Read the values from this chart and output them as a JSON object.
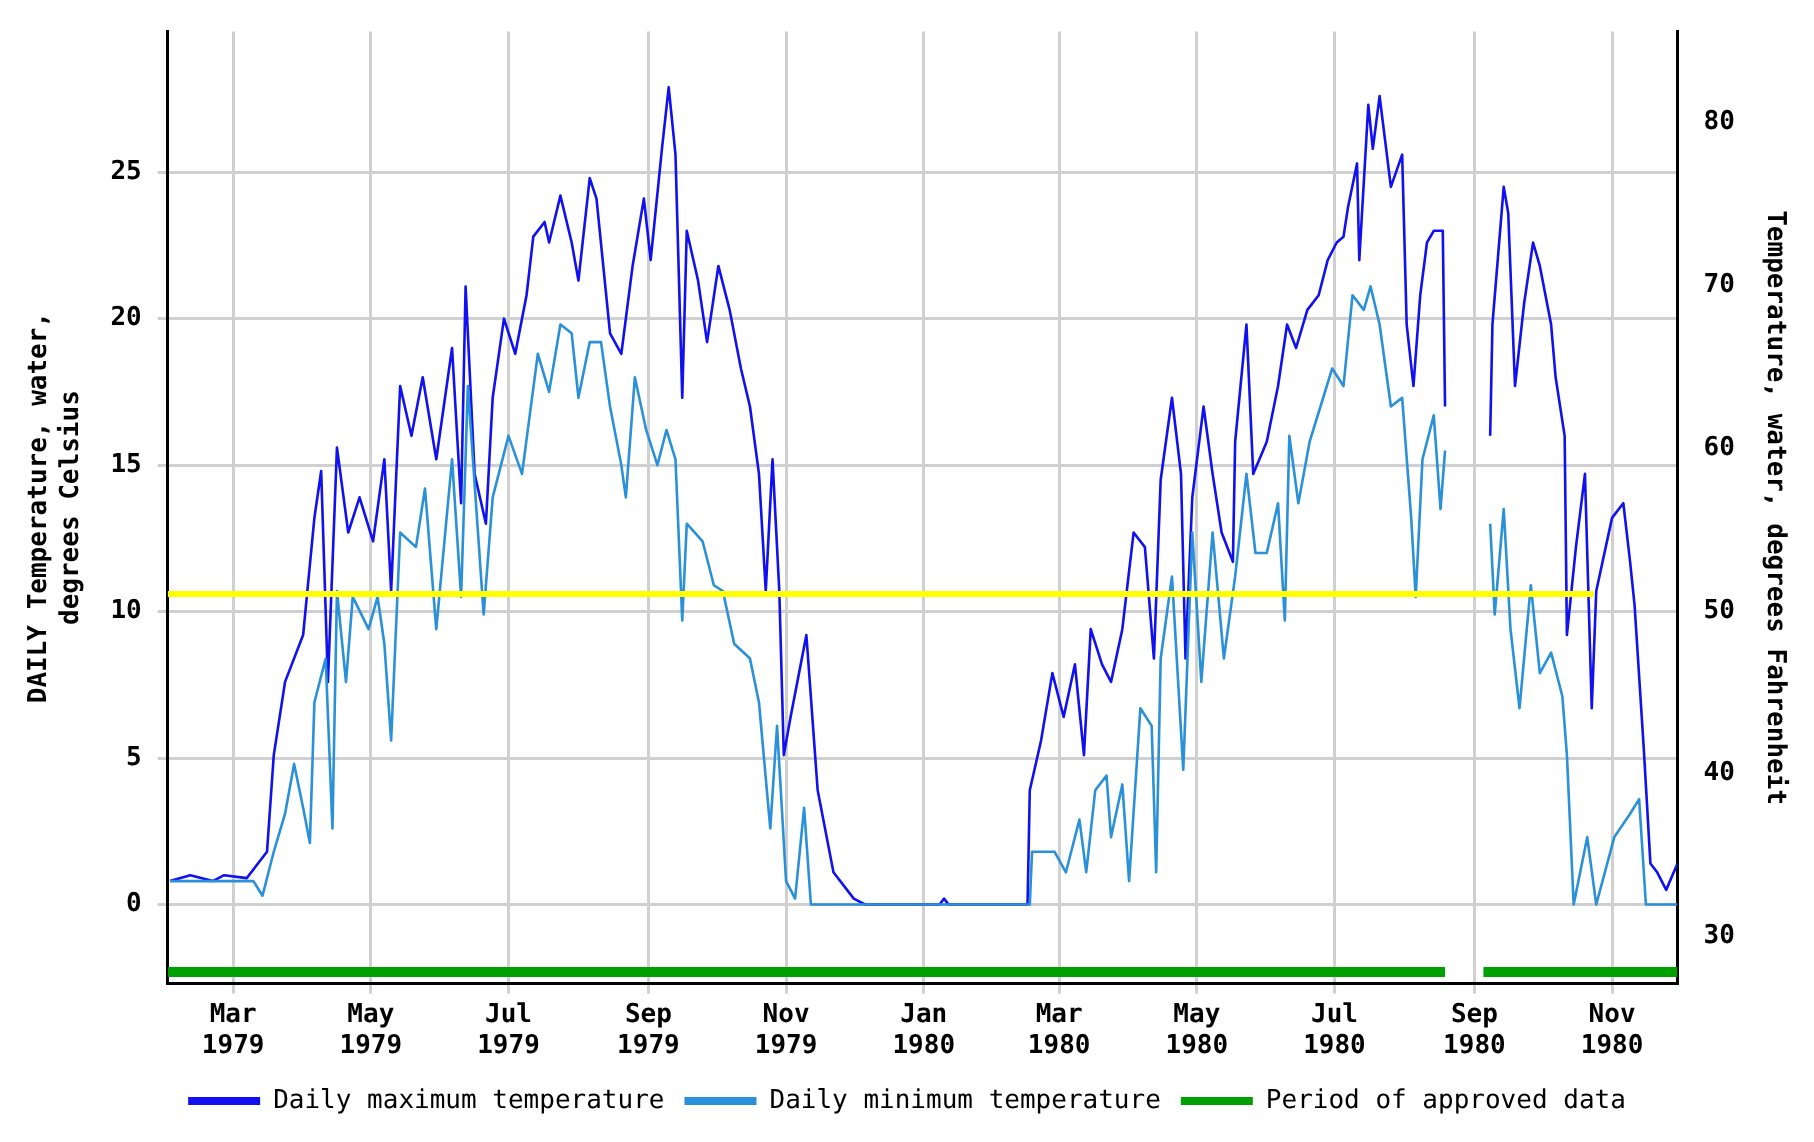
{
  "chart_data": {
    "type": "line",
    "xlabel": null,
    "ylabel": "DAILY Temperature, water, degrees Celsius",
    "y2label": "Temperature, water, degrees Fahrenheit",
    "xlim": [
      "1979-01-31",
      "1980-11-30"
    ],
    "xticks": [
      {
        "value": "1979-03-01",
        "label": "Mar 1979"
      },
      {
        "value": "1979-05-01",
        "label": "May 1979"
      },
      {
        "value": "1979-07-01",
        "label": "Jul 1979"
      },
      {
        "value": "1979-09-01",
        "label": "Sep 1979"
      },
      {
        "value": "1979-11-01",
        "label": "Nov 1979"
      },
      {
        "value": "1980-01-01",
        "label": "Jan 1980"
      },
      {
        "value": "1980-03-01",
        "label": "Mar 1980"
      },
      {
        "value": "1980-05-01",
        "label": "May 1980"
      },
      {
        "value": "1980-07-01",
        "label": "Jul 1980"
      },
      {
        "value": "1980-09-01",
        "label": "Sep 1980"
      },
      {
        "value": "1980-11-01",
        "label": "Nov 1980"
      }
    ],
    "ylim": [
      -2.7,
      29.8
    ],
    "yticks": [
      0,
      5,
      10,
      15,
      20,
      25
    ],
    "y2lim": [
      27.1,
      85.6
    ],
    "y2ticks": [
      30,
      40,
      50,
      60,
      70,
      80
    ],
    "grid": true,
    "legend": "bottom",
    "marker": "none",
    "line_style": "solid",
    "series": [
      {
        "name": "Daily maximum temperature",
        "color": "#1010f0",
        "x": [
          "1979-02-01",
          "1979-02-10",
          "1979-02-20",
          "1979-02-25",
          "1979-03-07",
          "1979-03-16",
          "1979-03-19",
          "1979-03-24",
          "1979-04-01",
          "1979-04-06",
          "1979-04-09",
          "1979-04-12",
          "1979-04-16",
          "1979-04-21",
          "1979-04-26",
          "1979-05-02",
          "1979-05-07",
          "1979-05-10",
          "1979-05-14",
          "1979-05-19",
          "1979-05-24",
          "1979-05-30",
          "1979-06-06",
          "1979-06-10",
          "1979-06-12",
          "1979-06-16",
          "1979-06-21",
          "1979-06-24",
          "1979-06-29",
          "1979-07-04",
          "1979-07-09",
          "1979-07-12",
          "1979-07-17",
          "1979-07-19",
          "1979-07-24",
          "1979-07-29",
          "1979-08-01",
          "1979-08-06",
          "1979-08-09",
          "1979-08-15",
          "1979-08-20",
          "1979-08-25",
          "1979-08-30",
          "1979-09-02",
          "1979-09-07",
          "1979-09-10",
          "1979-09-13",
          "1979-09-16",
          "1979-09-18",
          "1979-09-23",
          "1979-09-27",
          "1979-10-02",
          "1979-10-07",
          "1979-10-12",
          "1979-10-16",
          "1979-10-20",
          "1979-10-23",
          "1979-10-26",
          "1979-10-29",
          "1979-10-31",
          "1979-11-03",
          "1979-11-10",
          "1979-11-15",
          "1979-11-22",
          "1979-12-01",
          "1979-12-06",
          "1980-01-08",
          "1980-01-10",
          "1980-01-12",
          "1980-02-16",
          "1980-02-17",
          "1980-02-22",
          "1980-02-27",
          "1980-03-03",
          "1980-03-08",
          "1980-03-12",
          "1980-03-15",
          "1980-03-20",
          "1980-03-24",
          "1980-03-29",
          "1980-04-03",
          "1980-04-08",
          "1980-04-12",
          "1980-04-15",
          "1980-04-20",
          "1980-04-24",
          "1980-04-26",
          "1980-04-29",
          "1980-05-04",
          "1980-05-08",
          "1980-05-12",
          "1980-05-17",
          "1980-05-18",
          "1980-05-23",
          "1980-05-26",
          "1980-06-01",
          "1980-06-06",
          "1980-06-10",
          "1980-06-14",
          "1980-06-19",
          "1980-06-24",
          "1980-06-28",
          "1980-07-02",
          "1980-07-05",
          "1980-07-07",
          "1980-07-11",
          "1980-07-12",
          "1980-07-16",
          "1980-07-18",
          "1980-07-21",
          "1980-07-26",
          "1980-07-31",
          "1980-08-02",
          "1980-08-05",
          "1980-08-08",
          "1980-08-11",
          "1980-08-14",
          "1980-08-18",
          "1980-08-19",
          "1980-08-25",
          "1980-09-08",
          "1980-09-09",
          "1980-09-14",
          "1980-09-16",
          "1980-09-19",
          "1980-09-23",
          "1980-09-27",
          "1980-09-30",
          "1980-10-05",
          "1980-10-07",
          "1980-10-11",
          "1980-10-12",
          "1980-10-16",
          "1980-10-20",
          "1980-10-23",
          "1980-10-25",
          "1980-11-01",
          "1980-11-06",
          "1980-11-09",
          "1980-11-11",
          "1980-11-15",
          "1980-11-18",
          "1980-11-21",
          "1980-11-25",
          "1980-11-30"
        ],
        "values": [
          0.8,
          1.0,
          0.8,
          1.0,
          0.9,
          1.8,
          5.1,
          7.6,
          9.2,
          13.2,
          14.8,
          7.6,
          15.6,
          12.7,
          13.9,
          12.4,
          15.2,
          10.7,
          17.7,
          16.0,
          18.0,
          15.2,
          19.0,
          13.7,
          21.1,
          14.7,
          13.0,
          17.3,
          20.0,
          18.8,
          20.8,
          22.8,
          23.3,
          22.6,
          24.2,
          22.6,
          21.3,
          24.8,
          24.1,
          19.5,
          18.8,
          21.8,
          24.1,
          22.0,
          25.8,
          27.9,
          25.6,
          17.3,
          23.0,
          21.3,
          19.2,
          21.8,
          20.3,
          18.3,
          17.0,
          14.7,
          10.7,
          15.2,
          10.7,
          5.1,
          6.4,
          9.2,
          3.9,
          1.1,
          0.2,
          0.0,
          0.0,
          0.2,
          0.0,
          0.0,
          3.9,
          5.6,
          7.9,
          6.4,
          8.2,
          5.1,
          9.4,
          8.2,
          7.6,
          9.4,
          12.7,
          12.2,
          8.4,
          14.5,
          17.3,
          14.7,
          8.4,
          13.9,
          17.0,
          14.7,
          12.7,
          11.7,
          15.8,
          19.8,
          14.7,
          15.8,
          17.7,
          19.8,
          19.0,
          20.3,
          20.8,
          22.0,
          22.6,
          22.8,
          23.8,
          25.3,
          22.0,
          27.3,
          25.8,
          27.6,
          24.5,
          25.6,
          19.8,
          17.7,
          20.8,
          22.6,
          23.0,
          23.0,
          17.0,
          null,
          16.0,
          19.8,
          24.5,
          23.6,
          17.7,
          20.5,
          22.6,
          21.8,
          19.8,
          18.0,
          16.0,
          9.2,
          12.2,
          14.7,
          6.7,
          10.7,
          13.2,
          13.7,
          11.7,
          10.2,
          5.4,
          1.4,
          1.1,
          0.5,
          1.4
        ]
      },
      {
        "name": "Daily minimum temperature",
        "color": "#2a90d8",
        "x": [
          "1979-02-01",
          "1979-03-10",
          "1979-03-14",
          "1979-03-19",
          "1979-03-24",
          "1979-03-28",
          "1979-04-01",
          "1979-04-04",
          "1979-04-06",
          "1979-04-11",
          "1979-04-14",
          "1979-04-16",
          "1979-04-20",
          "1979-04-23",
          "1979-04-30",
          "1979-05-04",
          "1979-05-07",
          "1979-05-10",
          "1979-05-14",
          "1979-05-21",
          "1979-05-25",
          "1979-05-30",
          "1979-06-06",
          "1979-06-10",
          "1979-06-13",
          "1979-06-20",
          "1979-06-24",
          "1979-07-01",
          "1979-07-07",
          "1979-07-14",
          "1979-07-19",
          "1979-07-24",
          "1979-07-29",
          "1979-08-01",
          "1979-08-06",
          "1979-08-11",
          "1979-08-15",
          "1979-08-20",
          "1979-08-22",
          "1979-08-26",
          "1979-08-31",
          "1979-09-05",
          "1979-09-09",
          "1979-09-13",
          "1979-09-16",
          "1979-09-18",
          "1979-09-25",
          "1979-09-30",
          "1979-10-04",
          "1979-10-09",
          "1979-10-16",
          "1979-10-20",
          "1979-10-25",
          "1979-10-28",
          "1979-11-01",
          "1979-11-05",
          "1979-11-09",
          "1979-11-12",
          "1980-02-17",
          "1980-02-18",
          "1980-02-28",
          "1980-03-04",
          "1980-03-10",
          "1980-03-13",
          "1980-03-17",
          "1980-03-22",
          "1980-03-24",
          "1980-03-29",
          "1980-04-01",
          "1980-04-06",
          "1980-04-11",
          "1980-04-13",
          "1980-04-15",
          "1980-04-20",
          "1980-04-25",
          "1980-04-29",
          "1980-05-03",
          "1980-05-08",
          "1980-05-13",
          "1980-05-18",
          "1980-05-23",
          "1980-05-27",
          "1980-06-01",
          "1980-06-06",
          "1980-06-09",
          "1980-06-11",
          "1980-06-15",
          "1980-06-20",
          "1980-06-26",
          "1980-06-30",
          "1980-07-05",
          "1980-07-09",
          "1980-07-14",
          "1980-07-17",
          "1980-07-21",
          "1980-07-26",
          "1980-07-31",
          "1980-08-04",
          "1980-08-06",
          "1980-08-09",
          "1980-08-14",
          "1980-08-17",
          "1980-08-19",
          "1980-08-25",
          "1980-09-08",
          "1980-09-10",
          "1980-09-14",
          "1980-09-17",
          "1980-09-21",
          "1980-09-26",
          "1980-09-30",
          "1980-10-05",
          "1980-10-10",
          "1980-10-12",
          "1980-10-15",
          "1980-10-21",
          "1980-10-25",
          "1980-11-02",
          "1980-11-09",
          "1980-11-13",
          "1980-11-16",
          "1980-11-30"
        ],
        "values": [
          0.8,
          0.8,
          0.3,
          1.8,
          3.1,
          4.8,
          3.3,
          2.1,
          6.9,
          8.4,
          2.6,
          10.7,
          7.6,
          10.5,
          9.4,
          10.5,
          8.9,
          5.6,
          12.7,
          12.2,
          14.2,
          9.4,
          15.2,
          10.5,
          17.7,
          9.9,
          13.9,
          16.0,
          14.7,
          18.8,
          17.5,
          19.8,
          19.5,
          17.3,
          19.2,
          19.2,
          17.0,
          15.0,
          13.9,
          18.0,
          16.2,
          15.0,
          16.2,
          15.2,
          9.7,
          13.0,
          12.4,
          10.9,
          10.7,
          8.9,
          8.4,
          6.9,
          2.6,
          6.1,
          0.8,
          0.2,
          3.3,
          0.0,
          0.0,
          1.8,
          1.8,
          1.1,
          2.9,
          1.1,
          3.9,
          4.4,
          2.3,
          4.1,
          0.8,
          6.7,
          6.1,
          1.1,
          8.4,
          11.2,
          4.6,
          12.7,
          7.6,
          12.7,
          8.4,
          11.2,
          14.7,
          12.0,
          12.0,
          13.7,
          9.7,
          16.0,
          13.7,
          15.8,
          17.3,
          18.3,
          17.7,
          20.8,
          20.3,
          21.1,
          19.8,
          17.0,
          17.3,
          13.2,
          10.5,
          15.2,
          16.7,
          13.5,
          15.5,
          null,
          13.0,
          9.9,
          13.5,
          9.4,
          6.7,
          10.9,
          7.9,
          8.6,
          7.1,
          5.1,
          0.0,
          2.3,
          0.0,
          2.3,
          3.1,
          3.6,
          0.0,
          0.0
        ]
      },
      {
        "color": "#ffff00",
        "x": [
          "1979-01-31",
          "1980-10-24"
        ],
        "values": [
          10.6,
          10.6
        ]
      },
      {
        "name": "Period of approved data",
        "color": "#00a000",
        "x": [
          "1979-01-31",
          "1980-08-19",
          "1980-08-25",
          "1980-09-05",
          "1980-11-30"
        ],
        "values": [
          -2.3,
          -2.3,
          null,
          -2.3,
          -2.3
        ]
      }
    ]
  }
}
